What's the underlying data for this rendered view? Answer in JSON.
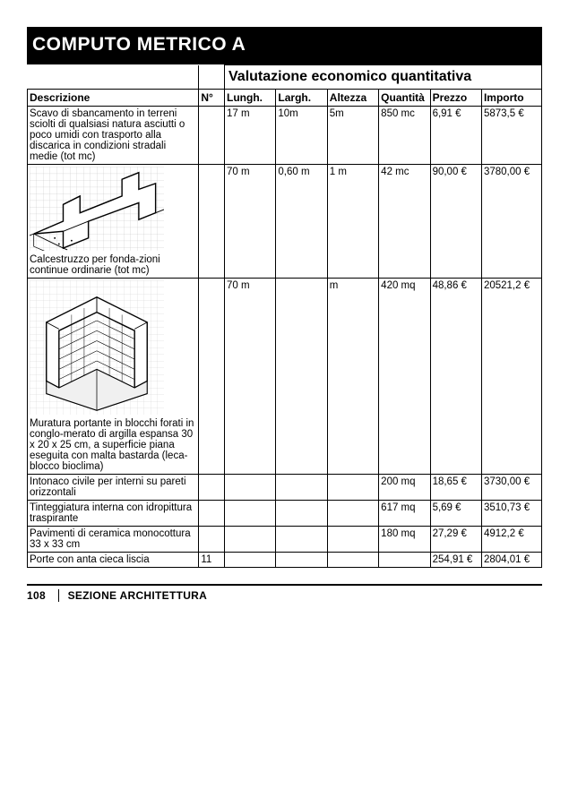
{
  "title": "COMPUTO METRICO A",
  "groupHeader": "Valutazione economico quantitativa",
  "columns": {
    "desc": "Descrizione",
    "num": "N°",
    "lungh": "Lungh.",
    "largh": "Largh.",
    "altezza": "Altezza",
    "quantita": "Quantità",
    "prezzo": "Prezzo",
    "importo": "Importo"
  },
  "rows": [
    {
      "desc": "Scavo di sbancamento in terreni sciolti di qualsiasi natura asciutti o poco umidi con trasporto alla discarica in condizioni stradali medie (tot mc)",
      "num": "",
      "lungh": "17 m",
      "largh": "10m",
      "altezza": "5m",
      "quantita": "850 mc",
      "prezzo": "6,91 €",
      "importo": "5873,5 €",
      "illus": "none"
    },
    {
      "desc": "Calcestruzzo per fonda-zioni continue ordinarie (tot mc)",
      "num": "",
      "lungh": "70 m",
      "largh": "0,60 m",
      "altezza": "1 m",
      "quantita": "42 mc",
      "prezzo": "90,00 €",
      "importo": "3780,00 €",
      "illus": "foundation"
    },
    {
      "desc": "Muratura portante in blocchi forati in conglo-merato di argilla espansa 30 x 20 x 25 cm, a superficie piana eseguita con malta bastarda (leca-blocco bioclima)",
      "num": "",
      "lungh": "70 m",
      "largh": "",
      "altezza": "m",
      "quantita": "420 mq",
      "prezzo": "48,86 €",
      "importo": "20521,2 €",
      "illus": "wall"
    },
    {
      "desc": "Intonaco civile per interni su pareti orizzontali",
      "num": "",
      "lungh": "",
      "largh": "",
      "altezza": "",
      "quantita": "200 mq",
      "prezzo": "18,65 €",
      "importo": "3730,00 €",
      "illus": "none"
    },
    {
      "desc": "Tinteggiatura interna con idropittura traspirante",
      "num": "",
      "lungh": "",
      "largh": "",
      "altezza": "",
      "quantita": "617 mq",
      "prezzo": "5,69 €",
      "importo": "3510,73 €",
      "illus": "none"
    },
    {
      "desc": "Pavimenti di ceramica monocottura 33 x 33 cm",
      "num": "",
      "lungh": "",
      "largh": "",
      "altezza": "",
      "quantita": "180 mq",
      "prezzo": "27,29 €",
      "importo": "4912,2 €",
      "illus": "none"
    },
    {
      "desc": "Porte con anta cieca liscia",
      "num": "11",
      "lungh": "",
      "largh": "",
      "altezza": "",
      "quantita": "",
      "prezzo": "254,91 €",
      "importo": "2804,01 €",
      "illus": "none"
    }
  ],
  "footer": {
    "page": "108",
    "section": "SEZIONE ARCHITETTURA"
  },
  "style": {
    "titleBg": "#000000",
    "titleColor": "#ffffff",
    "borderColor": "#000000",
    "background": "#ffffff",
    "fontBody": 11.5,
    "fontTitle": 21,
    "fontHeader": 16
  }
}
